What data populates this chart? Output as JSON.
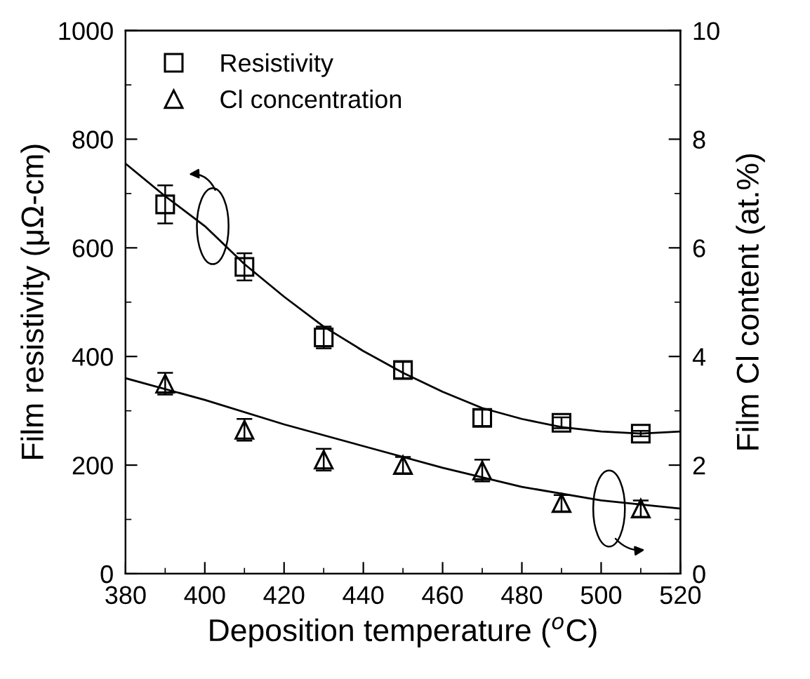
{
  "chart_data": {
    "type": "scatter",
    "xlabel": "Deposition temperature ($^{o}$C)",
    "ylabel": "Film resistivity (μΩ-cm)",
    "y2label": "Film Cl content (at.%)",
    "x": [
      390,
      410,
      430,
      450,
      470,
      490,
      510
    ],
    "series": [
      {
        "name": "Resistivity",
        "color": "#000000",
        "marker": "square",
        "values": [
          680,
          565,
          435,
          375,
          287,
          278,
          258
        ],
        "errors": [
          35,
          25,
          20,
          15,
          15,
          10,
          5
        ]
      },
      {
        "name": "Cl concentration",
        "color": "#000000",
        "marker": "triangle",
        "axis": "y2",
        "values": [
          3.5,
          2.65,
          2.1,
          2.0,
          1.9,
          1.3,
          1.2
        ],
        "errors": [
          0.2,
          0.2,
          0.2,
          0.15,
          0.2,
          0.15,
          0.15
        ]
      },
      {
        "type": "line",
        "color": "#000000",
        "x": [
          380,
          390,
          400,
          410,
          420,
          430,
          440,
          450,
          460,
          470,
          480,
          490,
          500,
          510,
          520
        ],
        "values": [
          755,
          695,
          640,
          570,
          510,
          455,
          410,
          370,
          335,
          305,
          285,
          270,
          262,
          258,
          262
        ]
      },
      {
        "type": "line",
        "color": "#000000",
        "axis": "y2",
        "x": [
          380,
          400,
          420,
          440,
          460,
          480,
          500,
          520
        ],
        "values": [
          3.6,
          3.2,
          2.75,
          2.35,
          1.95,
          1.6,
          1.35,
          1.2
        ]
      }
    ],
    "xlim": [
      380,
      520
    ],
    "xticks": [
      380,
      400,
      420,
      440,
      460,
      480,
      500,
      520
    ],
    "ylim": [
      0,
      1000
    ],
    "yticks": [
      0,
      200,
      400,
      600,
      800,
      1000
    ],
    "y2lim": [
      0,
      10
    ],
    "y2ticks": [
      0,
      2,
      4,
      6,
      8,
      10
    ],
    "legend": "top left",
    "grid": false
  }
}
